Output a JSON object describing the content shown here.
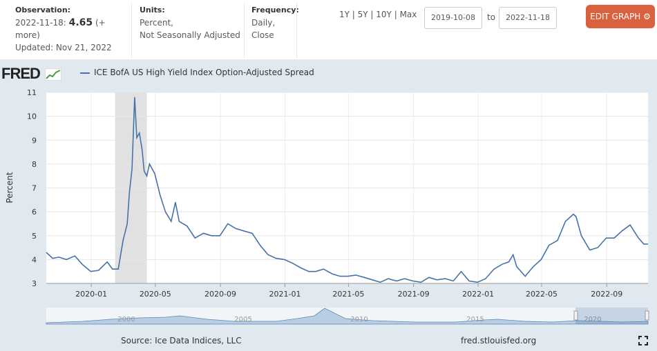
{
  "header": {
    "observation_label": "Observation:",
    "observation_date": "2022-11-18:",
    "observation_value": "4.65",
    "observation_more": "(+ more)",
    "updated": "Updated: Nov 21, 2022",
    "units_label": "Units:",
    "units_line1": "Percent,",
    "units_line2": "Not Seasonally Adjusted",
    "frequency_label": "Frequency:",
    "frequency_line1": "Daily,",
    "frequency_line2": "Close",
    "ranges": [
      "1Y",
      "5Y",
      "10Y",
      "Max"
    ],
    "range_sep": " | ",
    "start_date": "2019-10-08",
    "to_label": "to",
    "end_date": "2022-11-18",
    "edit_button": "EDIT GRAPH"
  },
  "brand": {
    "logo": "FRED",
    "logo_icon": "fred-chart-icon"
  },
  "footer": {
    "source": "Source: Ice Data Indices, LLC",
    "url": "fred.stlouisfed.org",
    "expand_icon": "fullscreen-icon"
  },
  "colors": {
    "line": "#4572a7",
    "recession": "#e1e1e1",
    "edit_button": "#d9613e",
    "background": "#e1e9f0"
  },
  "chart_data": {
    "type": "line",
    "title": "",
    "xlabel": "",
    "ylabel": "Percent",
    "ylim": [
      3,
      11
    ],
    "yticks": [
      3,
      4,
      5,
      6,
      7,
      8,
      9,
      10,
      11
    ],
    "xlim": [
      "2019-10-08",
      "2022-11-18"
    ],
    "xticks": [
      "2020-01",
      "2020-05",
      "2020-09",
      "2021-01",
      "2021-05",
      "2021-09",
      "2022-01",
      "2022-05",
      "2022-09"
    ],
    "grid": true,
    "legend_position": "top-left",
    "recession": [
      "2020-02-15",
      "2020-04-15"
    ],
    "navigator_labels": [
      "2000",
      "2005",
      "2010",
      "2015",
      "2020"
    ],
    "series": [
      {
        "name": "ICE BofA US High Yield Index Option-Adjusted Spread",
        "x": [
          "2019-10-08",
          "2019-10-20",
          "2019-11-01",
          "2019-11-15",
          "2019-12-01",
          "2019-12-15",
          "2019-12-31",
          "2020-01-15",
          "2020-01-31",
          "2020-02-10",
          "2020-02-21",
          "2020-03-01",
          "2020-03-09",
          "2020-03-13",
          "2020-03-18",
          "2020-03-23",
          "2020-03-27",
          "2020-04-01",
          "2020-04-06",
          "2020-04-10",
          "2020-04-15",
          "2020-04-20",
          "2020-04-30",
          "2020-05-10",
          "2020-05-20",
          "2020-05-31",
          "2020-06-08",
          "2020-06-15",
          "2020-06-30",
          "2020-07-15",
          "2020-07-31",
          "2020-08-15",
          "2020-08-31",
          "2020-09-15",
          "2020-09-30",
          "2020-10-15",
          "2020-10-31",
          "2020-11-15",
          "2020-11-30",
          "2020-12-15",
          "2020-12-31",
          "2021-01-15",
          "2021-01-31",
          "2021-02-15",
          "2021-02-28",
          "2021-03-15",
          "2021-03-31",
          "2021-04-15",
          "2021-04-30",
          "2021-05-15",
          "2021-05-31",
          "2021-06-15",
          "2021-06-30",
          "2021-07-15",
          "2021-07-31",
          "2021-08-15",
          "2021-08-31",
          "2021-09-15",
          "2021-09-30",
          "2021-10-15",
          "2021-10-31",
          "2021-11-15",
          "2021-11-30",
          "2021-12-15",
          "2021-12-31",
          "2022-01-15",
          "2022-01-31",
          "2022-02-15",
          "2022-02-28",
          "2022-03-08",
          "2022-03-15",
          "2022-03-31",
          "2022-04-15",
          "2022-04-30",
          "2022-05-15",
          "2022-05-31",
          "2022-06-15",
          "2022-06-30",
          "2022-07-05",
          "2022-07-15",
          "2022-07-31",
          "2022-08-15",
          "2022-08-31",
          "2022-09-15",
          "2022-09-30",
          "2022-10-15",
          "2022-10-31",
          "2022-11-10",
          "2022-11-18"
        ],
        "values": [
          4.3,
          4.05,
          4.1,
          4.0,
          4.15,
          3.8,
          3.5,
          3.55,
          3.9,
          3.6,
          3.6,
          4.8,
          5.5,
          6.8,
          7.8,
          10.8,
          9.1,
          9.3,
          8.6,
          7.7,
          7.5,
          8.0,
          7.6,
          6.7,
          6.0,
          5.6,
          6.4,
          5.6,
          5.4,
          4.9,
          5.1,
          5.0,
          5.0,
          5.5,
          5.3,
          5.2,
          5.1,
          4.6,
          4.2,
          4.05,
          4.0,
          3.85,
          3.65,
          3.5,
          3.5,
          3.6,
          3.4,
          3.3,
          3.3,
          3.35,
          3.25,
          3.15,
          3.05,
          3.2,
          3.1,
          3.2,
          3.1,
          3.05,
          3.25,
          3.15,
          3.2,
          3.1,
          3.5,
          3.1,
          3.05,
          3.2,
          3.6,
          3.8,
          3.9,
          4.2,
          3.7,
          3.3,
          3.7,
          4.0,
          4.6,
          4.8,
          5.6,
          5.9,
          5.8,
          5.0,
          4.4,
          4.5,
          4.9,
          4.9,
          5.2,
          5.45,
          4.9,
          4.65,
          4.65
        ]
      }
    ]
  }
}
